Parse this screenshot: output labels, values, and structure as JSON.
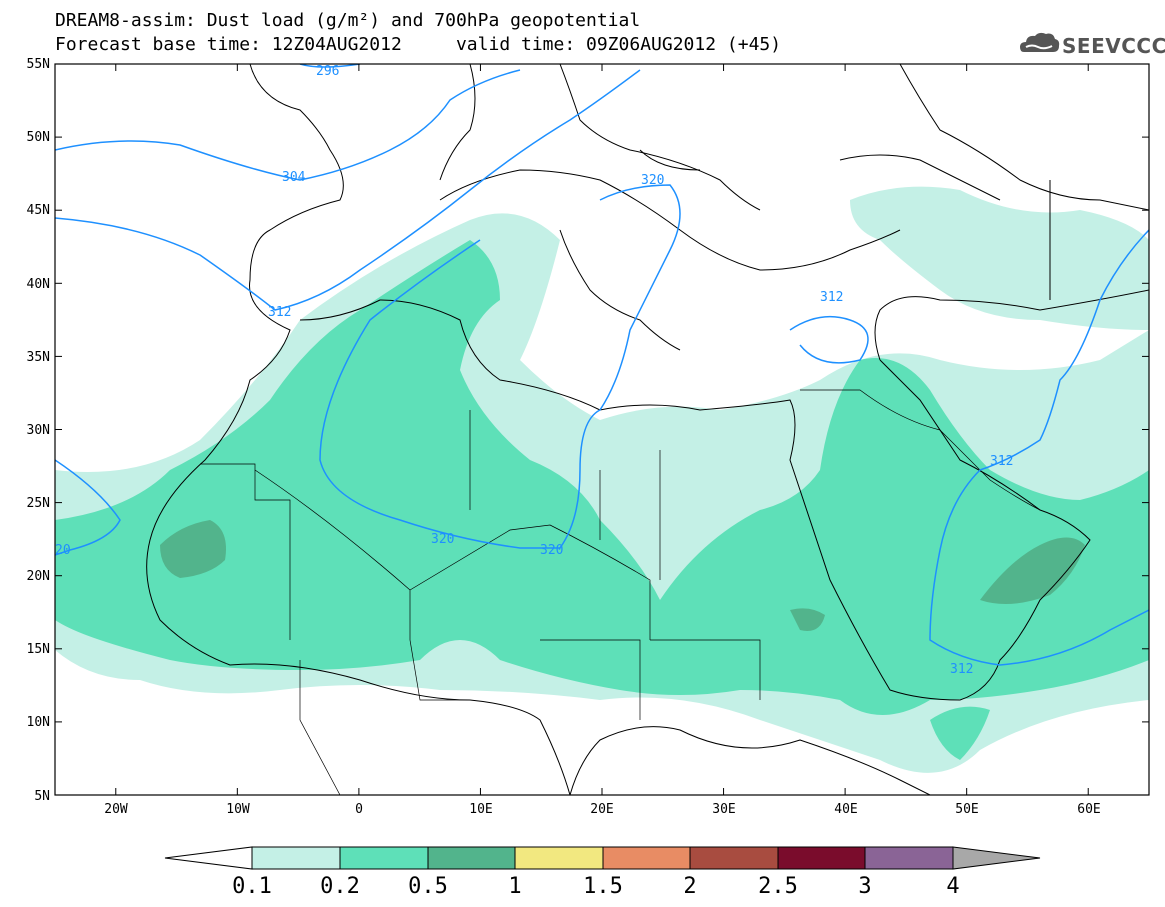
{
  "title": {
    "line1": "DREAM8-assim: Dust load (g/m²) and 700hPa geopotential",
    "line2": "Forecast base time: 12Z04AUG2012     valid time: 09Z06AUG2012 (+45)"
  },
  "logo": {
    "text": "SEEVCCC",
    "icon": "cloud-logo-icon"
  },
  "map": {
    "lat_ticks": [
      "55N",
      "50N",
      "45N",
      "40N",
      "35N",
      "30N",
      "25N",
      "20N",
      "15N",
      "10N",
      "5N"
    ],
    "lon_ticks": [
      "20W",
      "10W",
      "0",
      "10E",
      "20E",
      "30E",
      "40E",
      "50E",
      "60E"
    ],
    "contour_labels": [
      "296",
      "304",
      "312",
      "320",
      "312",
      "320",
      "320",
      "312",
      "312"
    ],
    "contour_color": "#1e90ff",
    "coast_color": "#000000"
  },
  "colorbar": {
    "levels": [
      "0.1",
      "0.2",
      "0.5",
      "1",
      "1.5",
      "2",
      "2.5",
      "3",
      "4"
    ],
    "colors": [
      "#c4f0e6",
      "#5ee0b8",
      "#52b48c",
      "#f2e880",
      "#e88c64",
      "#a84c40",
      "#7a0c2c",
      "#8a6496"
    ],
    "under_color": "#ffffff",
    "over_color": "#a8a8a8"
  }
}
